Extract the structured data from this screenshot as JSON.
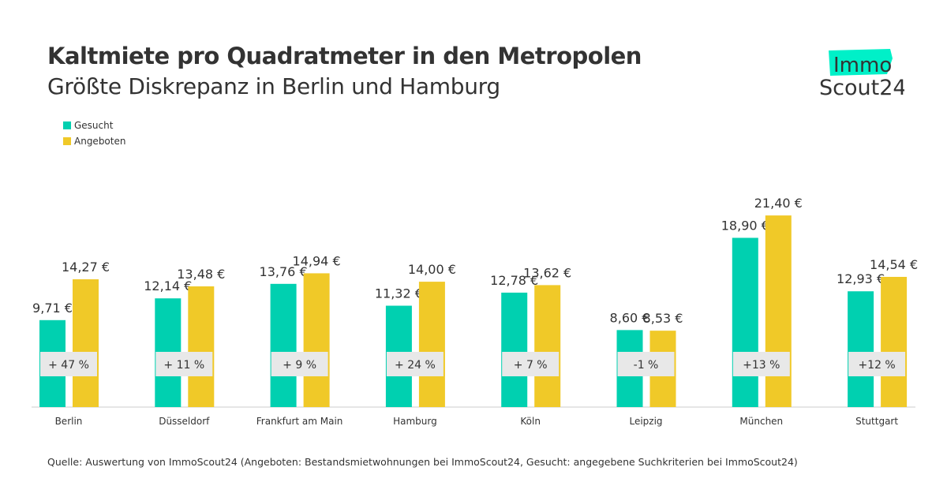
{
  "chart_data": {
    "type": "bar",
    "title": "Kaltmiete pro Quadratmeter in den Metropolen",
    "subtitle": "Größte Diskrepanz in Berlin und Hamburg",
    "categories": [
      "Berlin",
      "Düsseldorf",
      "Frankfurt am Main",
      "Hamburg",
      "Köln",
      "Leipzig",
      "München",
      "Stuttgart"
    ],
    "series": [
      {
        "name": "Gesucht",
        "color": "#00d0b0",
        "values": [
          9.71,
          12.14,
          13.76,
          11.32,
          12.78,
          8.6,
          18.9,
          12.93
        ],
        "labels": [
          "9,71 €",
          "12,14 €",
          "13,76 €",
          "11,32 €",
          "12,78 €",
          "8,60 €",
          "18,90 €",
          "12,93 €"
        ]
      },
      {
        "name": "Angeboten",
        "color": "#f0c928",
        "values": [
          14.27,
          13.48,
          14.94,
          14.0,
          13.62,
          8.53,
          21.4,
          14.54
        ],
        "labels": [
          "14,27 €",
          "13,48 €",
          "14,94 €",
          "14,00 €",
          "13,62 €",
          "8,53 €",
          "21,40 €",
          "14,54 €"
        ]
      }
    ],
    "differences": [
      "+ 47 %",
      "+ 11 %",
      "+ 9 %",
      "+ 24 %",
      "+ 7 %",
      "-1 %",
      "+13 %",
      "+12 %"
    ],
    "legend": "top-left",
    "grid": false,
    "ylim": [
      0,
      22
    ]
  },
  "source": "Quelle: Auswertung von ImmoScout24 (Angeboten: Bestandsmietwohnungen bei ImmoScout24, Gesucht: angegebene Suchkriterien bei ImmoScout24)",
  "logo": {
    "line1": "Immo",
    "line2": "Scout24",
    "color": "#00f0c8"
  }
}
